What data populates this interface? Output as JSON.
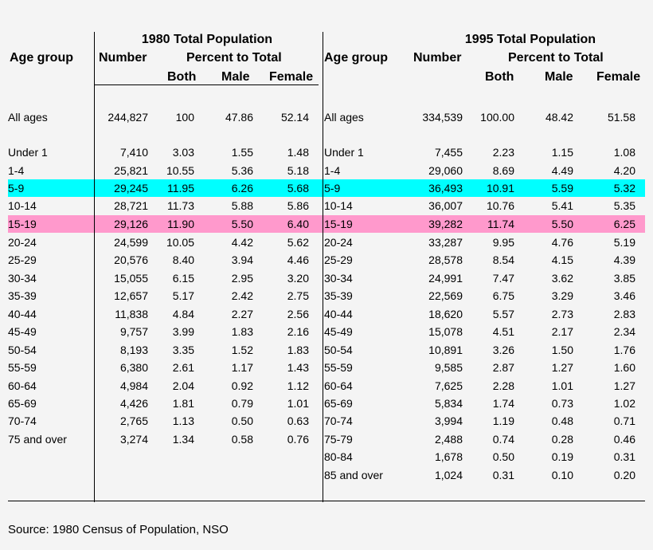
{
  "header": {
    "left_title": "1980 Total Population",
    "right_title": "1995 Total Population",
    "age_group": "Age group",
    "number": "Number",
    "percent_to_total": "Percent to Total",
    "both": "Both",
    "male": "Male",
    "female": "Female"
  },
  "highlight": {
    "cyan": "#00ffff",
    "pink": "#ff99cc"
  },
  "t1980": [
    [
      "All ages",
      "244,827",
      "100",
      "47.86",
      "52.14"
    ],
    [
      "Under 1",
      "7,410",
      "3.03",
      "1.55",
      "1.48"
    ],
    [
      "1-4",
      "25,821",
      "10.55",
      "5.36",
      "5.18"
    ],
    [
      "5-9",
      "29,245",
      "11.95",
      "6.26",
      "5.68"
    ],
    [
      "10-14",
      "28,721",
      "11.73",
      "5.88",
      "5.86"
    ],
    [
      "15-19",
      "29,126",
      "11.90",
      "5.50",
      "6.40"
    ],
    [
      "20-24",
      "24,599",
      "10.05",
      "4.42",
      "5.62"
    ],
    [
      "25-29",
      "20,576",
      "8.40",
      "3.94",
      "4.46"
    ],
    [
      "30-34",
      "15,055",
      "6.15",
      "2.95",
      "3.20"
    ],
    [
      "35-39",
      "12,657",
      "5.17",
      "2.42",
      "2.75"
    ],
    [
      "40-44",
      "11,838",
      "4.84",
      "2.27",
      "2.56"
    ],
    [
      "45-49",
      "9,757",
      "3.99",
      "1.83",
      "2.16"
    ],
    [
      "50-54",
      "8,193",
      "3.35",
      "1.52",
      "1.83"
    ],
    [
      "55-59",
      "6,380",
      "2.61",
      "1.17",
      "1.43"
    ],
    [
      "60-64",
      "4,984",
      "2.04",
      "0.92",
      "1.12"
    ],
    [
      "65-69",
      "4,426",
      "1.81",
      "0.79",
      "1.01"
    ],
    [
      "70-74",
      "2,765",
      "1.13",
      "0.50",
      "0.63"
    ],
    [
      "75 and over",
      "3,274",
      "1.34",
      "0.58",
      "0.76"
    ]
  ],
  "t1995": [
    [
      "All ages",
      "334,539",
      "100.00",
      "48.42",
      "51.58"
    ],
    [
      "Under 1",
      "7,455",
      "2.23",
      "1.15",
      "1.08"
    ],
    [
      "1-4",
      "29,060",
      "8.69",
      "4.49",
      "4.20"
    ],
    [
      "5-9",
      "36,493",
      "10.91",
      "5.59",
      "5.32"
    ],
    [
      "10-14",
      "36,007",
      "10.76",
      "5.41",
      "5.35"
    ],
    [
      "15-19",
      "39,282",
      "11.74",
      "5.50",
      "6.25"
    ],
    [
      "20-24",
      "33,287",
      "9.95",
      "4.76",
      "5.19"
    ],
    [
      "25-29",
      "28,578",
      "8.54",
      "4.15",
      "4.39"
    ],
    [
      "30-34",
      "24,991",
      "7.47",
      "3.62",
      "3.85"
    ],
    [
      "35-39",
      "22,569",
      "6.75",
      "3.29",
      "3.46"
    ],
    [
      "40-44",
      "18,620",
      "5.57",
      "2.73",
      "2.83"
    ],
    [
      "45-49",
      "15,078",
      "4.51",
      "2.17",
      "2.34"
    ],
    [
      "50-54",
      "10,891",
      "3.26",
      "1.50",
      "1.76"
    ],
    [
      "55-59",
      "9,585",
      "2.87",
      "1.27",
      "1.60"
    ],
    [
      "60-64",
      "7,625",
      "2.28",
      "1.01",
      "1.27"
    ],
    [
      "65-69",
      "5,834",
      "1.74",
      "0.73",
      "1.02"
    ],
    [
      "70-74",
      "3,994",
      "1.19",
      "0.48",
      "0.71"
    ],
    [
      "75-79",
      "2,488",
      "0.74",
      "0.28",
      "0.46"
    ],
    [
      "80-84",
      "1,678",
      "0.50",
      "0.19",
      "0.31"
    ],
    [
      "85 and over",
      "1,024",
      "0.31",
      "0.10",
      "0.20"
    ]
  ],
  "source": "Source: 1980 Census of Population, NSO"
}
